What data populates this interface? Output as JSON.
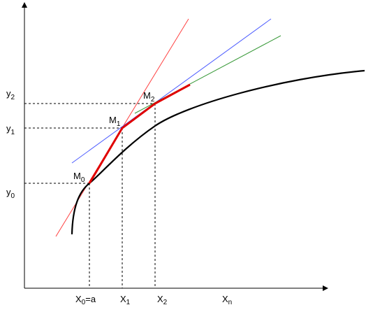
{
  "y_axis_labels": [
    {
      "base": "y",
      "sub": "2"
    },
    {
      "base": "y",
      "sub": "1"
    },
    {
      "base": "y",
      "sub": "0"
    }
  ],
  "points": [
    {
      "base": "M",
      "sub": "0"
    },
    {
      "base": "M",
      "sub": "1"
    },
    {
      "base": "M",
      "sub": "2"
    }
  ],
  "x_axis_labels": [
    {
      "base": "X",
      "sub": "0",
      "suffix": "=a"
    },
    {
      "base": "X",
      "sub": "1"
    },
    {
      "base": "X",
      "sub": "2"
    },
    {
      "base": "X",
      "sub": "n"
    }
  ]
}
